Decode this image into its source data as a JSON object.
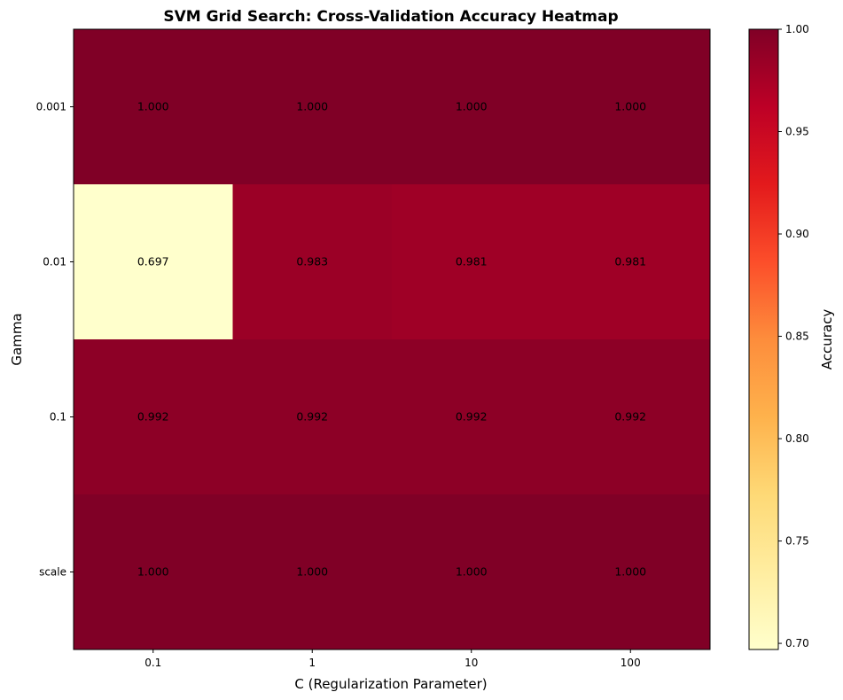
{
  "chart_data": {
    "type": "heatmap",
    "title": "SVM Grid Search: Cross-Validation Accuracy Heatmap",
    "xlabel": "C (Regularization Parameter)",
    "ylabel": "Gamma",
    "x_categories": [
      "0.1",
      "1",
      "10",
      "100"
    ],
    "y_categories": [
      "0.001",
      "0.01",
      "0.1",
      "scale"
    ],
    "values": [
      [
        1.0,
        1.0,
        1.0,
        1.0
      ],
      [
        0.697,
        0.983,
        0.981,
        0.981
      ],
      [
        0.992,
        0.992,
        0.992,
        0.992
      ],
      [
        1.0,
        1.0,
        1.0,
        1.0
      ]
    ],
    "value_labels": [
      [
        "1.000",
        "1.000",
        "1.000",
        "1.000"
      ],
      [
        "0.697",
        "0.983",
        "0.981",
        "0.981"
      ],
      [
        "0.992",
        "0.992",
        "0.992",
        "0.992"
      ],
      [
        "1.000",
        "1.000",
        "1.000",
        "1.000"
      ]
    ],
    "colormap": "YlOrRd",
    "colormap_stops": [
      "#ffffcc",
      "#ffeda0",
      "#fed976",
      "#feb24c",
      "#fd8d3c",
      "#fc4e2a",
      "#e31a1c",
      "#bd0026",
      "#800026"
    ],
    "colorbar": {
      "label": "Accuracy",
      "range": [
        0.697,
        1.0
      ],
      "ticks": [
        0.7,
        0.75,
        0.8,
        0.85,
        0.9,
        0.95,
        1.0
      ],
      "tick_labels": [
        "0.70",
        "0.75",
        "0.80",
        "0.85",
        "0.90",
        "0.95",
        "1.00"
      ]
    }
  }
}
